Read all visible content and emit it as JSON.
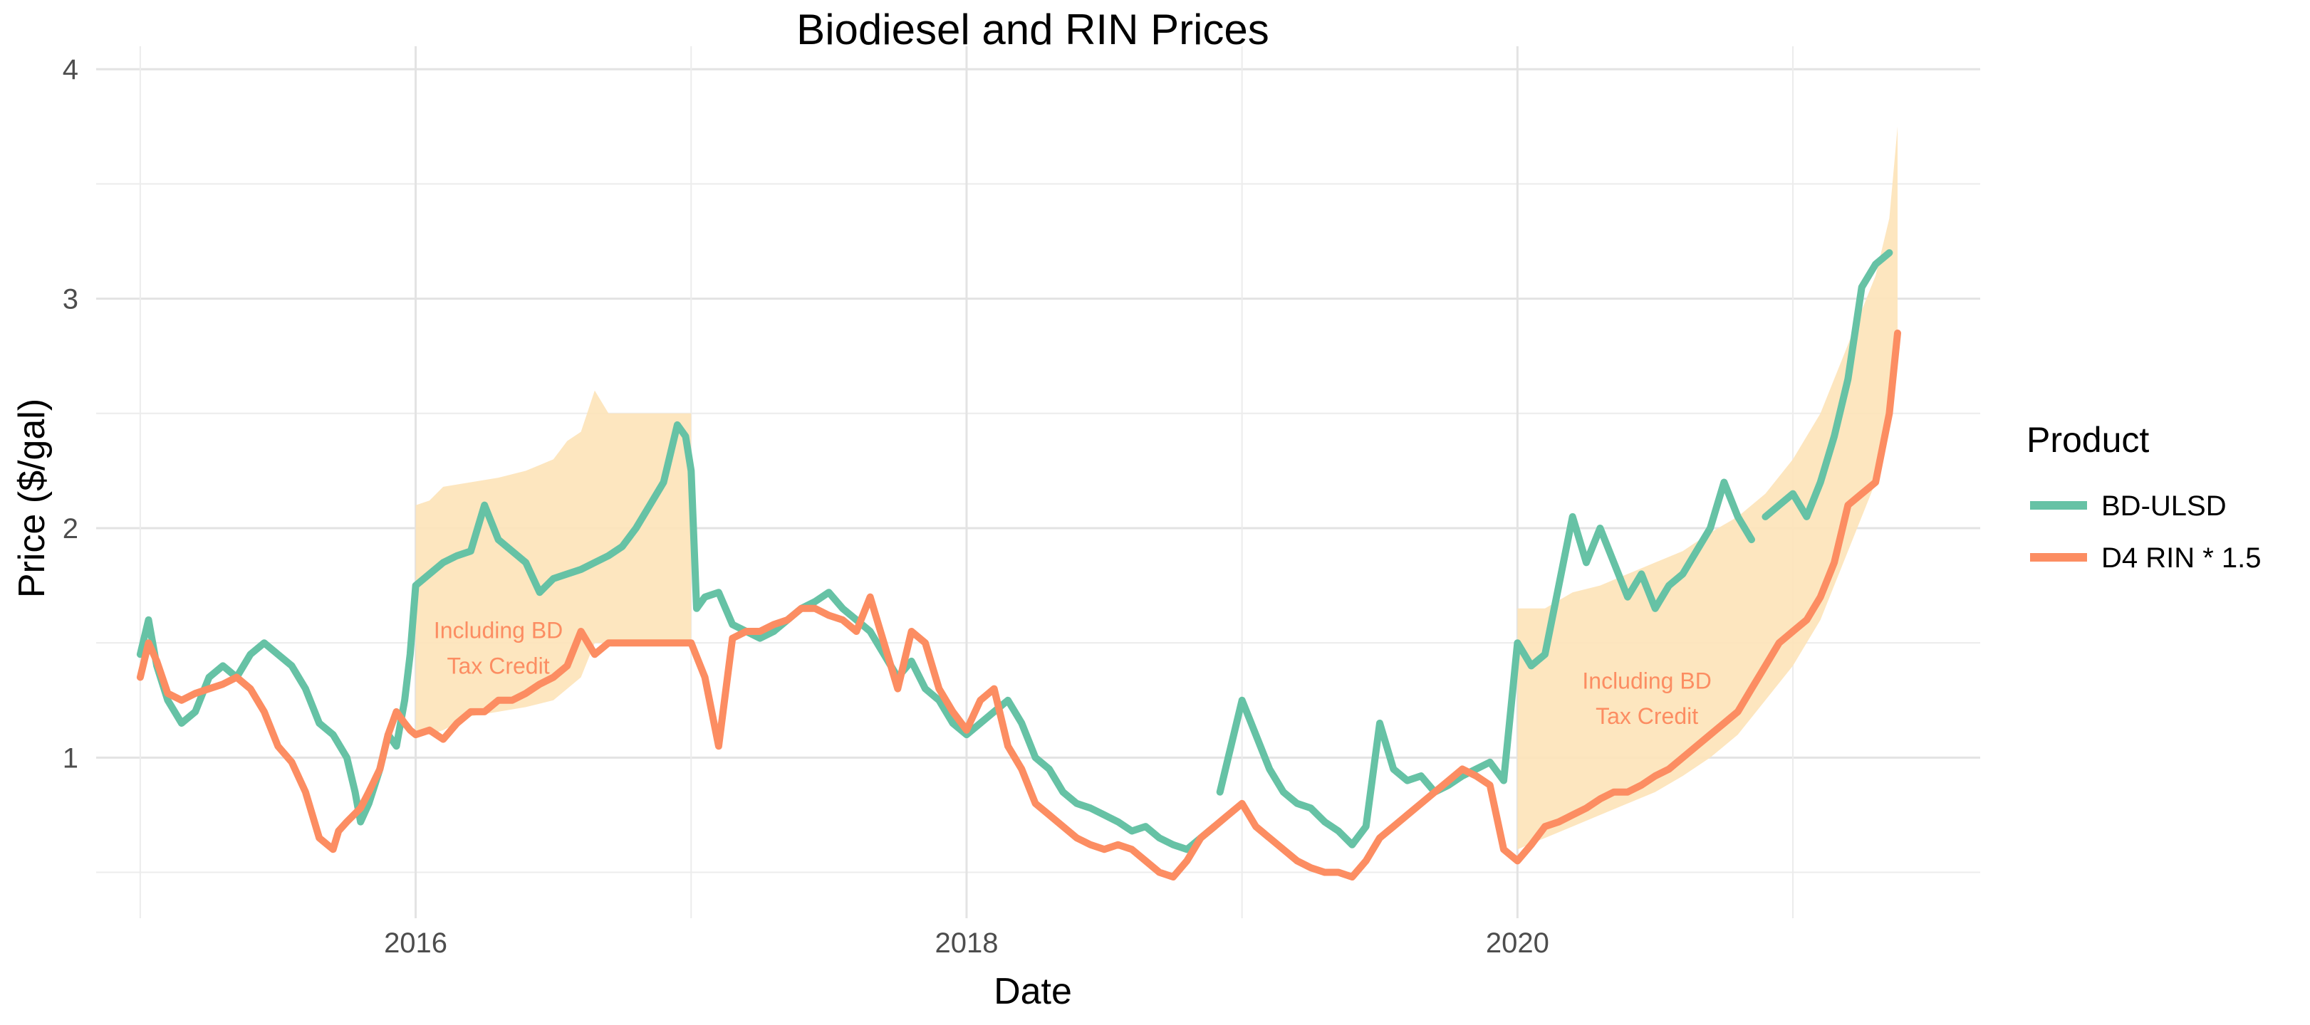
{
  "chart_data": {
    "type": "line",
    "title": "Biodiesel and RIN Prices",
    "xlabel": "Date",
    "ylabel": "Price ($/gal)",
    "xlim": [
      2014.84,
      2021.68
    ],
    "ylim": [
      0.3,
      4.1
    ],
    "x_ticks": [
      2016,
      2018,
      2020
    ],
    "x_tick_labels": [
      "2016",
      "2018",
      "2020"
    ],
    "y_ticks": [
      1,
      2,
      3,
      4
    ],
    "y_tick_labels": [
      "1",
      "2",
      "3",
      "4"
    ],
    "grid": true,
    "legend": {
      "title": "Product",
      "position": "right",
      "entries": [
        {
          "label": "BD-ULSD",
          "color": "#66c2a5"
        },
        {
          "label": "D4 RIN * 1.5",
          "color": "#fc8d62"
        }
      ]
    },
    "annotations": [
      {
        "id": "annotation-2016",
        "lines": [
          "Including BD",
          "Tax Credit"
        ],
        "x": 2016.3,
        "y": 1.52,
        "color": "#fc8d62"
      },
      {
        "id": "annotation-2020",
        "lines": [
          "Including BD",
          "Tax Credit"
        ],
        "x": 2020.47,
        "y": 1.3,
        "color": "#fc8d62"
      }
    ],
    "ribbons": [
      {
        "name": "tax-credit-band-2016",
        "color": "#fde3b8",
        "x": [
          2016.0,
          2016.05,
          2016.1,
          2016.2,
          2016.3,
          2016.4,
          2016.5,
          2016.55,
          2016.6,
          2016.65,
          2016.7,
          2016.8,
          2016.9,
          2017.0
        ],
        "upper": [
          2.1,
          2.12,
          2.18,
          2.2,
          2.22,
          2.25,
          2.3,
          2.38,
          2.42,
          2.6,
          2.5,
          2.5,
          2.5,
          2.5
        ],
        "lower": [
          1.12,
          1.1,
          1.12,
          1.18,
          1.2,
          1.22,
          1.25,
          1.3,
          1.35,
          1.5,
          1.5,
          1.5,
          1.5,
          1.5
        ]
      },
      {
        "name": "tax-credit-band-2020",
        "color": "#fde3b8",
        "x": [
          2020.0,
          2020.1,
          2020.2,
          2020.3,
          2020.4,
          2020.5,
          2020.6,
          2020.7,
          2020.8,
          2020.9,
          2021.0,
          2021.1,
          2021.2,
          2021.3,
          2021.35,
          2021.38
        ],
        "upper": [
          1.65,
          1.65,
          1.72,
          1.75,
          1.8,
          1.85,
          1.9,
          1.98,
          2.05,
          2.15,
          2.3,
          2.5,
          2.8,
          3.1,
          3.35,
          3.75
        ],
        "lower": [
          0.6,
          0.65,
          0.7,
          0.75,
          0.8,
          0.85,
          0.92,
          1.0,
          1.1,
          1.25,
          1.4,
          1.6,
          1.9,
          2.2,
          2.45,
          2.85
        ]
      }
    ],
    "series": [
      {
        "name": "BD-ULSD",
        "color": "#66c2a5",
        "segments": [
          {
            "x": [
              2015.0,
              2015.03,
              2015.06,
              2015.1,
              2015.15,
              2015.2,
              2015.25,
              2015.3,
              2015.35,
              2015.4,
              2015.45,
              2015.5,
              2015.55,
              2015.6,
              2015.65,
              2015.7,
              2015.75,
              2015.78,
              2015.8,
              2015.83,
              2015.87,
              2015.9,
              2015.93,
              2015.96,
              2015.98,
              2016.0,
              2016.05,
              2016.1,
              2016.15,
              2016.2,
              2016.25,
              2016.3,
              2016.35,
              2016.4,
              2016.45,
              2016.5,
              2016.55,
              2016.6,
              2016.65,
              2016.7,
              2016.75,
              2016.8,
              2016.85,
              2016.9,
              2016.95,
              2016.98,
              2017.0,
              2017.02,
              2017.05,
              2017.1,
              2017.15,
              2017.2,
              2017.25,
              2017.3,
              2017.35,
              2017.4,
              2017.45,
              2017.5,
              2017.55,
              2017.6,
              2017.65,
              2017.7,
              2017.75,
              2017.8,
              2017.85,
              2017.9,
              2017.95,
              2018.0,
              2018.05,
              2018.1,
              2018.15,
              2018.2,
              2018.25,
              2018.3,
              2018.35,
              2018.4,
              2018.45,
              2018.5,
              2018.55,
              2018.6,
              2018.65,
              2018.7,
              2018.75,
              2018.8,
              2018.85,
              2018.9
            ],
            "y": [
              1.45,
              1.6,
              1.4,
              1.25,
              1.15,
              1.2,
              1.35,
              1.4,
              1.35,
              1.45,
              1.5,
              1.45,
              1.4,
              1.3,
              1.15,
              1.1,
              1.0,
              0.85,
              0.72,
              0.8,
              0.95,
              1.1,
              1.05,
              1.25,
              1.45,
              1.75,
              1.8,
              1.85,
              1.88,
              1.9,
              2.1,
              1.95,
              1.9,
              1.85,
              1.72,
              1.78,
              1.8,
              1.82,
              1.85,
              1.88,
              1.92,
              2.0,
              2.1,
              2.2,
              2.45,
              2.4,
              2.25,
              1.65,
              1.7,
              1.72,
              1.58,
              1.55,
              1.52,
              1.55,
              1.6,
              1.65,
              1.68,
              1.72,
              1.65,
              1.6,
              1.55,
              1.45,
              1.35,
              1.42,
              1.3,
              1.25,
              1.15,
              1.1,
              1.15,
              1.2,
              1.25,
              1.15,
              1.0,
              0.95,
              0.85,
              0.8,
              0.78,
              0.75,
              0.72,
              0.68,
              0.7,
              0.65,
              0.62,
              0.6,
              0.65,
              0.7
            ]
          },
          {
            "x": [
              2018.92,
              2018.95,
              2019.0,
              2019.05,
              2019.1,
              2019.15,
              2019.2,
              2019.25,
              2019.3,
              2019.35,
              2019.4,
              2019.45,
              2019.5,
              2019.55,
              2019.6,
              2019.65,
              2019.7,
              2019.75,
              2019.8,
              2019.85,
              2019.9,
              2019.95,
              2020.0,
              2020.05,
              2020.1,
              2020.15,
              2020.2,
              2020.25,
              2020.3,
              2020.35,
              2020.4,
              2020.45,
              2020.5,
              2020.55,
              2020.6,
              2020.65,
              2020.7,
              2020.75,
              2020.8,
              2020.85
            ],
            "y": [
              0.85,
              1.0,
              1.25,
              1.1,
              0.95,
              0.85,
              0.8,
              0.78,
              0.72,
              0.68,
              0.62,
              0.7,
              1.15,
              0.95,
              0.9,
              0.92,
              0.85,
              0.88,
              0.92,
              0.95,
              0.98,
              0.9,
              1.5,
              1.4,
              1.45,
              1.75,
              2.05,
              1.85,
              2.0,
              1.85,
              1.7,
              1.8,
              1.65,
              1.75,
              1.8,
              1.9,
              2.0,
              2.2,
              2.05,
              1.95
            ]
          },
          {
            "x": [
              2020.9,
              2020.95,
              2021.0,
              2021.05,
              2021.1,
              2021.15,
              2021.2,
              2021.25,
              2021.3,
              2021.35
            ],
            "y": [
              2.05,
              2.1,
              2.15,
              2.05,
              2.2,
              2.4,
              2.65,
              3.05,
              3.15,
              3.2
            ]
          }
        ]
      },
      {
        "name": "D4 RIN * 1.5",
        "color": "#fc8d62",
        "segments": [
          {
            "x": [
              2015.0,
              2015.03,
              2015.06,
              2015.1,
              2015.15,
              2015.2,
              2015.25,
              2015.3,
              2015.35,
              2015.4,
              2015.45,
              2015.5,
              2015.55,
              2015.6,
              2015.65,
              2015.7,
              2015.72,
              2015.75,
              2015.8,
              2015.83,
              2015.87,
              2015.9,
              2015.93,
              2015.96,
              2015.98,
              2016.0,
              2016.05,
              2016.1,
              2016.15,
              2016.2,
              2016.25,
              2016.3,
              2016.35,
              2016.4,
              2016.45,
              2016.5,
              2016.55,
              2016.6,
              2016.65,
              2016.7,
              2016.75,
              2016.8,
              2016.85,
              2016.9,
              2016.95,
              2017.0,
              2017.05,
              2017.1,
              2017.15,
              2017.2,
              2017.25,
              2017.3,
              2017.35,
              2017.4,
              2017.45,
              2017.5,
              2017.55,
              2017.6,
              2017.65,
              2017.7,
              2017.75,
              2017.8,
              2017.85,
              2017.9,
              2017.95,
              2018.0,
              2018.05,
              2018.1,
              2018.15,
              2018.2,
              2018.25,
              2018.3,
              2018.35,
              2018.4,
              2018.45,
              2018.5,
              2018.55,
              2018.6,
              2018.65,
              2018.7,
              2018.75,
              2018.8,
              2018.85,
              2018.9,
              2018.95,
              2019.0,
              2019.05,
              2019.1,
              2019.15,
              2019.2,
              2019.25,
              2019.3,
              2019.35,
              2019.4,
              2019.45,
              2019.5,
              2019.55,
              2019.6,
              2019.65,
              2019.7,
              2019.75,
              2019.8,
              2019.85,
              2019.9,
              2019.95,
              2020.0,
              2020.05,
              2020.1,
              2020.15,
              2020.2,
              2020.25,
              2020.3,
              2020.35,
              2020.4,
              2020.45,
              2020.5,
              2020.55,
              2020.6,
              2020.65,
              2020.7,
              2020.75,
              2020.8,
              2020.85,
              2020.9,
              2020.95,
              2021.0,
              2021.05,
              2021.1,
              2021.15,
              2021.2,
              2021.25,
              2021.3,
              2021.35,
              2021.38
            ],
            "y": [
              1.35,
              1.5,
              1.42,
              1.28,
              1.25,
              1.28,
              1.3,
              1.32,
              1.35,
              1.3,
              1.2,
              1.05,
              0.98,
              0.85,
              0.65,
              0.6,
              0.68,
              0.72,
              0.78,
              0.85,
              0.95,
              1.1,
              1.2,
              1.15,
              1.12,
              1.1,
              1.12,
              1.08,
              1.15,
              1.2,
              1.2,
              1.25,
              1.25,
              1.28,
              1.32,
              1.35,
              1.4,
              1.55,
              1.45,
              1.5,
              1.5,
              1.5,
              1.5,
              1.5,
              1.5,
              1.5,
              1.35,
              1.05,
              1.52,
              1.55,
              1.55,
              1.58,
              1.6,
              1.65,
              1.65,
              1.62,
              1.6,
              1.55,
              1.7,
              1.5,
              1.3,
              1.55,
              1.5,
              1.3,
              1.2,
              1.12,
              1.25,
              1.3,
              1.05,
              0.95,
              0.8,
              0.75,
              0.7,
              0.65,
              0.62,
              0.6,
              0.62,
              0.6,
              0.55,
              0.5,
              0.48,
              0.55,
              0.65,
              0.7,
              0.75,
              0.8,
              0.7,
              0.65,
              0.6,
              0.55,
              0.52,
              0.5,
              0.5,
              0.48,
              0.55,
              0.65,
              0.7,
              0.75,
              0.8,
              0.85,
              0.9,
              0.95,
              0.92,
              0.88,
              0.6,
              0.55,
              0.62,
              0.7,
              0.72,
              0.75,
              0.78,
              0.82,
              0.85,
              0.85,
              0.88,
              0.92,
              0.95,
              1.0,
              1.05,
              1.1,
              1.15,
              1.2,
              1.3,
              1.4,
              1.5,
              1.55,
              1.6,
              1.7,
              1.85,
              2.1,
              2.15,
              2.2,
              2.5,
              2.85
            ]
          }
        ]
      }
    ]
  }
}
